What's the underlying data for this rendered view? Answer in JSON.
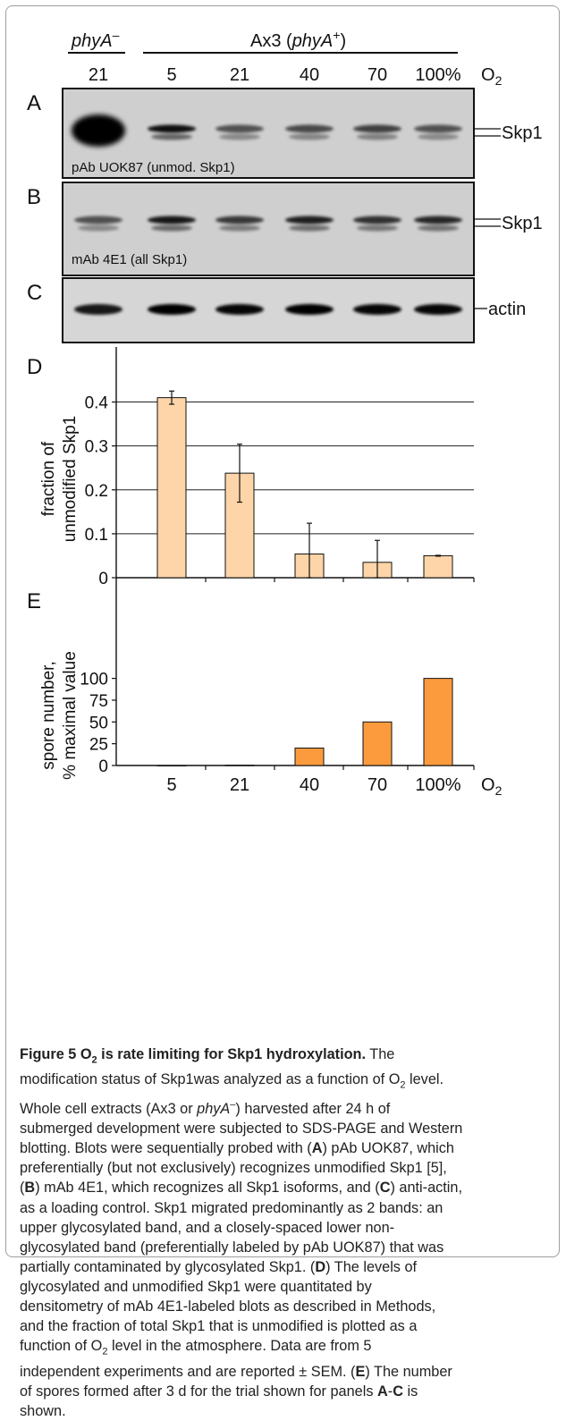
{
  "header": {
    "groups": [
      {
        "label": "phyA",
        "superscript": "–"
      },
      {
        "label_prefix": "Ax3 (",
        "label_italic": "phyA",
        "superscript": "+",
        "label_suffix": ")"
      }
    ],
    "o2_columns": [
      "21",
      "5",
      "21",
      "40",
      "70",
      "100%"
    ],
    "o2_label": "O",
    "o2_sub": "2"
  },
  "blots": [
    {
      "letter": "A",
      "antibody": "pAb UOK87 (unmod. Skp1)",
      "band_label": "Skp1",
      "band_intensity": [
        1.0,
        0.85,
        0.45,
        0.5,
        0.55,
        0.45
      ]
    },
    {
      "letter": "B",
      "antibody": "mAb 4E1 (all Skp1)",
      "band_label": "Skp1",
      "band_intensity": [
        0.45,
        0.8,
        0.6,
        0.75,
        0.65,
        0.7
      ]
    },
    {
      "letter": "C",
      "antibody": "",
      "band_label": "actin",
      "band_intensity": [
        0.8,
        0.95,
        0.9,
        0.95,
        0.9,
        0.9
      ]
    }
  ],
  "panel_letters": {
    "d": "D",
    "e": "E"
  },
  "panel_d_ylabel": [
    "fraction of",
    "unmodified Skp1"
  ],
  "panel_e_ylabel": [
    "spore number,",
    "% maximal value"
  ],
  "chart_data": [
    {
      "type": "bar",
      "panel": "D",
      "categories": [
        "5",
        "21",
        "40",
        "70",
        "100%"
      ],
      "values": [
        0.41,
        0.238,
        0.054,
        0.035,
        0.05
      ],
      "error": [
        0.015,
        0.066,
        0.07,
        0.05,
        0.001
      ],
      "ylabel": "fraction of unmodified Skp1",
      "ylim": [
        0,
        0.45
      ],
      "yticks": [
        "0",
        "0.1",
        "0.2",
        "0.3",
        "0.4"
      ],
      "grid": true,
      "color": "#fdd5a8"
    },
    {
      "type": "bar",
      "panel": "E",
      "categories": [
        "5",
        "21",
        "40",
        "70",
        "100%"
      ],
      "values": [
        0,
        0.3,
        20,
        50,
        100
      ],
      "ylabel": "spore number, % maximal value",
      "xlabel": "O2",
      "ylim": [
        0,
        115
      ],
      "yticks": [
        "0",
        "25",
        "50",
        "75",
        "100"
      ],
      "grid": false,
      "color": "#fb9b3e"
    }
  ],
  "caption": {
    "title_prefix": "Figure 5 O",
    "title_sub": "2",
    "title_suffix": " is rate limiting for Skp1 hydroxylation.",
    "lines": [
      {
        "parts": [
          {
            "t": " The",
            "b": false
          }
        ]
      },
      {
        "parts": [
          {
            "t": "modification status of Skp1was analyzed as a function of O",
            "b": false
          },
          {
            "sub": "2"
          },
          {
            "t": " level.",
            "b": false
          }
        ]
      },
      {
        "parts": [
          {
            "t": "Whole cell extracts (Ax3 or ",
            "b": false
          },
          {
            "i": "phyA"
          },
          {
            "sup": "–"
          },
          {
            "t": ") harvested after 24 h of",
            "b": false
          }
        ]
      },
      {
        "parts": [
          {
            "t": "submerged development were subjected to SDS-PAGE and Western",
            "b": false
          }
        ]
      },
      {
        "parts": [
          {
            "t": "blotting. Blots were sequentially probed with (",
            "b": false
          },
          {
            "t": "A",
            "b": true
          },
          {
            "t": ") pAb UOK87, which",
            "b": false
          }
        ]
      },
      {
        "parts": [
          {
            "t": "preferentially (but not exclusively) recognizes unmodified Skp1 [5],",
            "b": false
          }
        ]
      },
      {
        "parts": [
          {
            "t": "(",
            "b": false
          },
          {
            "t": "B",
            "b": true
          },
          {
            "t": ") mAb 4E1, which recognizes all Skp1 isoforms, and (",
            "b": false
          },
          {
            "t": "C",
            "b": true
          },
          {
            "t": ") anti-actin,",
            "b": false
          }
        ]
      },
      {
        "parts": [
          {
            "t": "as a loading control. Skp1 migrated predominantly as 2 bands: an",
            "b": false
          }
        ]
      },
      {
        "parts": [
          {
            "t": "upper glycosylated band, and a closely-spaced lower non-",
            "b": false
          }
        ]
      },
      {
        "parts": [
          {
            "t": "glycosylated band (preferentially labeled by pAb UOK87) that was",
            "b": false
          }
        ]
      },
      {
        "parts": [
          {
            "t": "partially contaminated by glycosylated Skp1. (",
            "b": false
          },
          {
            "t": "D",
            "b": true
          },
          {
            "t": ") The levels of",
            "b": false
          }
        ]
      },
      {
        "parts": [
          {
            "t": "glycosylated and unmodified Skp1 were quantitated by",
            "b": false
          }
        ]
      },
      {
        "parts": [
          {
            "t": "densitometry of mAb 4E1-labeled blots as described in Methods,",
            "b": false
          }
        ]
      },
      {
        "parts": [
          {
            "t": "and the fraction of total Skp1 that is unmodified is plotted as a",
            "b": false
          }
        ]
      },
      {
        "parts": [
          {
            "t": "function of O",
            "b": false
          },
          {
            "sub": "2"
          },
          {
            "t": " level in the atmosphere. Data are from 5",
            "b": false
          }
        ]
      },
      {
        "parts": [
          {
            "t": "independent experiments and are reported ± SEM. (",
            "b": false
          },
          {
            "t": "E",
            "b": true
          },
          {
            "t": ") The number",
            "b": false
          }
        ]
      },
      {
        "parts": [
          {
            "t": "of spores formed after 3 d for the trial shown for panels ",
            "b": false
          },
          {
            "t": "A",
            "b": true
          },
          {
            "t": "-",
            "b": false
          },
          {
            "t": "C",
            "b": true
          },
          {
            "t": " is",
            "b": false
          }
        ]
      },
      {
        "parts": [
          {
            "t": "shown.",
            "b": false
          }
        ]
      }
    ]
  }
}
